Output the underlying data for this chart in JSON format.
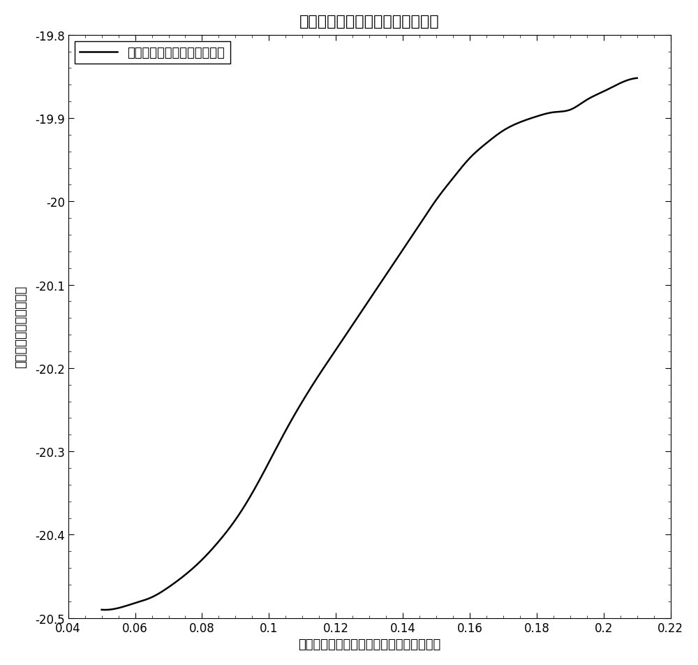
{
  "title": "围压装置内壁摩擦力分布函数图形",
  "xlabel": "电阵应变片中心位置距围压装置顶端的距离",
  "ylabel": "围压装置内壁摩擦力数値",
  "legend_label": "围压装置内壁摩擦力分布曲线",
  "xlim": [
    0.04,
    0.22
  ],
  "ylim": [
    -20.5,
    -19.8
  ],
  "xticks": [
    0.04,
    0.06,
    0.08,
    0.1,
    0.12,
    0.14,
    0.16,
    0.18,
    0.2,
    0.22
  ],
  "yticks": [
    -20.5,
    -20.4,
    -20.3,
    -20.2,
    -20.1,
    -20.0,
    -19.9,
    -19.8
  ],
  "line_color": "#000000",
  "line_width": 1.8,
  "background_color": "#ffffff",
  "title_fontsize": 16,
  "label_fontsize": 13,
  "tick_fontsize": 12,
  "legend_fontsize": 13,
  "curve_x": [
    0.05,
    0.055,
    0.06,
    0.065,
    0.07,
    0.075,
    0.08,
    0.085,
    0.09,
    0.095,
    0.1,
    0.105,
    0.11,
    0.115,
    0.12,
    0.125,
    0.13,
    0.135,
    0.14,
    0.145,
    0.15,
    0.155,
    0.16,
    0.165,
    0.17,
    0.175,
    0.18,
    0.185,
    0.19,
    0.195,
    0.2,
    0.205,
    0.21
  ],
  "curve_y": [
    -20.49,
    -20.488,
    -20.482,
    -20.475,
    -20.463,
    -20.448,
    -20.43,
    -20.408,
    -20.382,
    -20.35,
    -20.313,
    -20.275,
    -20.24,
    -20.208,
    -20.178,
    -20.148,
    -20.118,
    -20.088,
    -20.058,
    -20.028,
    -19.998,
    -19.972,
    -19.948,
    -19.93,
    -19.915,
    -19.905,
    -19.898,
    -19.893,
    -19.89,
    -19.878,
    -19.868,
    -19.858,
    -19.852
  ]
}
